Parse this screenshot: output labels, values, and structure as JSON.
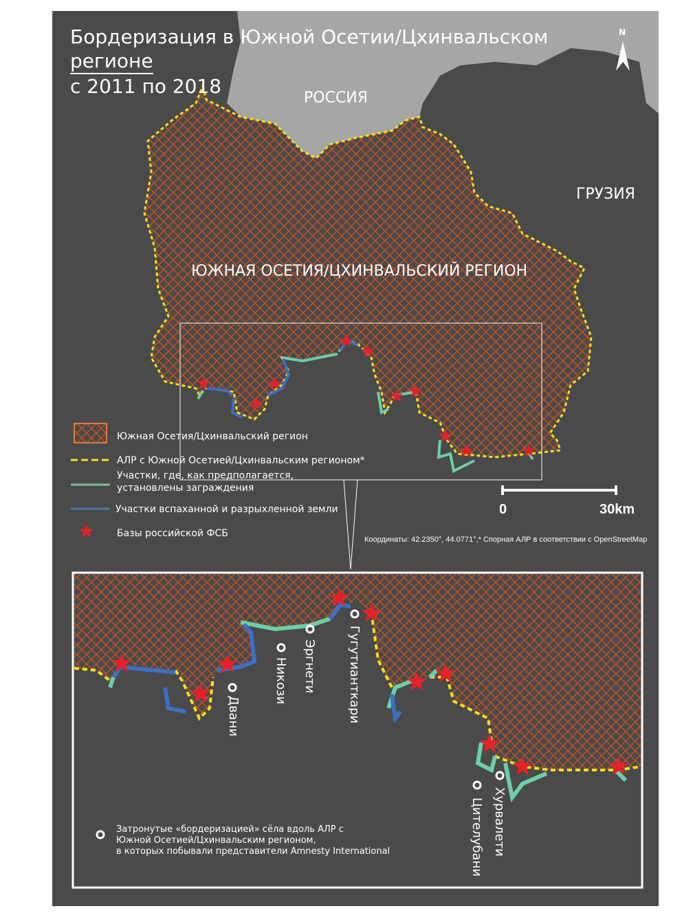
{
  "title": {
    "line1": "Бордеризация в Южной Осетии/Цхинвальском",
    "line2": "регионе",
    "line3": "с 2011 по 2018"
  },
  "map_labels": {
    "russia": "РОССИЯ",
    "georgia": "ГРУЗИЯ",
    "region": "ЮЖНАЯ ОСЕТИЯ/ЦХИНВАЛЬСКИЙ РЕГИОН",
    "north": "N"
  },
  "legend": [
    {
      "icon": "hatched-region",
      "label": "Южная Осетия/Цхинвальский регион"
    },
    {
      "icon": "yellow-dashed-line",
      "label": "АЛР с Южной Осетией/Цхинвальским регионом*"
    },
    {
      "icon": "green-line",
      "label1": "Участки, где, как предполагается,",
      "label2": "установлены заграждения"
    },
    {
      "icon": "blue-line",
      "label": "Участки вспаханной и разрыхленной земли"
    },
    {
      "icon": "red-star",
      "label": "Базы российской ФСБ"
    }
  ],
  "scale": {
    "start": "0",
    "end": "30km"
  },
  "footnote": "Координаты: 42.2350°,  44.0771°,* Спорная АЛР в соответствии с OpenStreetMap",
  "inset": {
    "villages": [
      "Двани",
      "Никози",
      "Эргнети",
      "Гугутианткари",
      "Цителубани",
      "Хурвалети"
    ],
    "legend1": "Затронутые «бордеризацией» сёла вдоль АЛР с",
    "legend2": "Южной Осетией/Цхинвальским регионом,",
    "legend3": "в которых побывали представители Amnesty International"
  },
  "colors": {
    "background": "#4a4a4a",
    "russia": "#a6a6a6",
    "hatch": "#d0541f",
    "border": "#f2e21b",
    "fence": "#6ccfa7",
    "plowed": "#3d6fc4",
    "star": "#e8202a"
  }
}
